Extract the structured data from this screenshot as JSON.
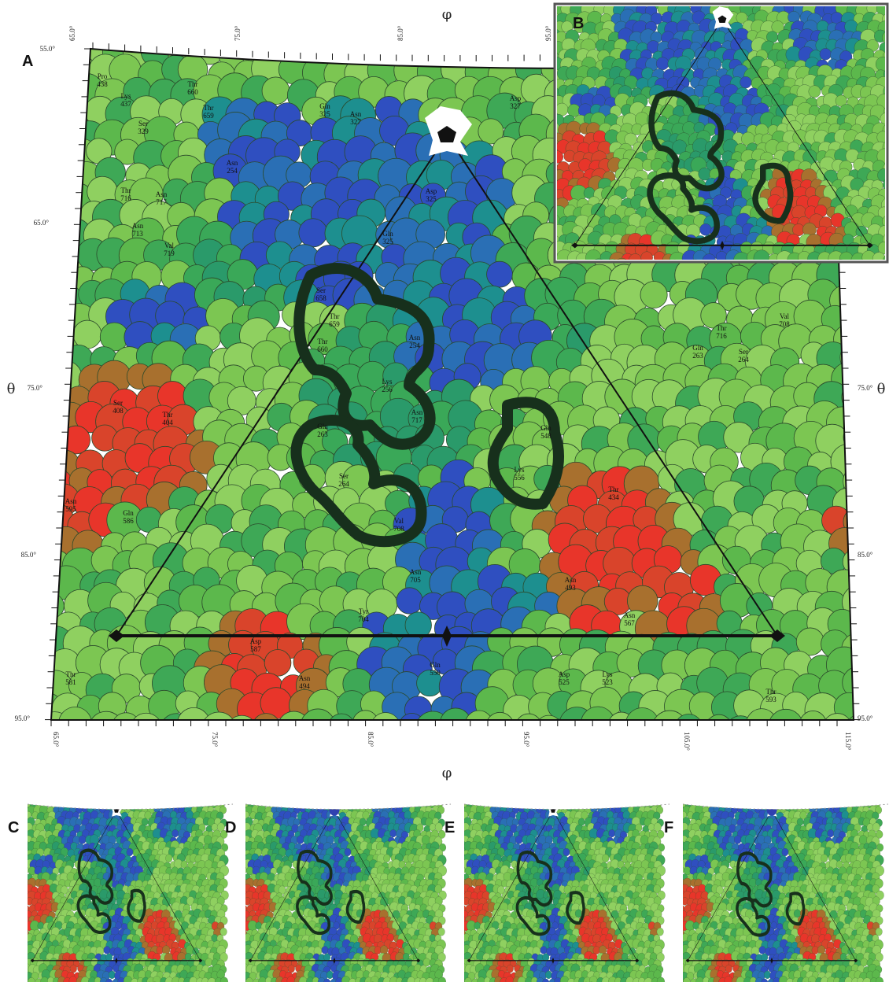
{
  "panel_labels": [
    "A",
    "B",
    "C",
    "D",
    "E",
    "F"
  ],
  "axis_labels": {
    "phi_top": "φ",
    "phi_bottom": "φ",
    "theta_left": "θ",
    "theta_right": "θ"
  },
  "ticks": {
    "top": [
      "65.0°",
      "75.0°",
      "85.0°",
      "95.0°"
    ],
    "bottom": [
      "65.0°",
      "75.0°",
      "85.0°",
      "95.0°",
      "105.0°",
      "115.0°"
    ],
    "left": [
      "55.0°",
      "65.0°",
      "75.0°",
      "85.0°",
      "95.0°"
    ],
    "right": [
      "75.0°",
      "85.0°",
      "95.0°"
    ]
  },
  "residues": [
    {
      "name": "Pro",
      "number": "438"
    },
    {
      "name": "Lys",
      "number": "437"
    },
    {
      "name": "Thr",
      "number": "660"
    },
    {
      "name": "Thr",
      "number": "659"
    },
    {
      "name": "Gln",
      "number": "325"
    },
    {
      "name": "Asn",
      "number": "327"
    },
    {
      "name": "Asp",
      "number": "327"
    },
    {
      "name": "Ser",
      "number": "329"
    },
    {
      "name": "Asn",
      "number": "254"
    },
    {
      "name": "Thr",
      "number": "716"
    },
    {
      "name": "Asn",
      "number": "717"
    },
    {
      "name": "Asn",
      "number": "713"
    },
    {
      "name": "Val",
      "number": "719"
    },
    {
      "name": "Asp",
      "number": "325"
    },
    {
      "name": "Gln",
      "number": "325"
    },
    {
      "name": "Ser",
      "number": "658"
    },
    {
      "name": "Thr",
      "number": "659"
    },
    {
      "name": "Thr",
      "number": "660"
    },
    {
      "name": "Asn",
      "number": "254"
    },
    {
      "name": "Lys",
      "number": "256"
    },
    {
      "name": "Asn",
      "number": "717"
    },
    {
      "name": "Gln",
      "number": "263"
    },
    {
      "name": "Ser",
      "number": "264"
    },
    {
      "name": "Val",
      "number": "708"
    },
    {
      "name": "Gln",
      "number": "548"
    },
    {
      "name": "Lys",
      "number": "556"
    },
    {
      "name": "Thr",
      "number": "716"
    },
    {
      "name": "Val",
      "number": "708"
    },
    {
      "name": "Gln",
      "number": "263"
    },
    {
      "name": "Ser",
      "number": "264"
    },
    {
      "name": "Thr",
      "number": "434"
    },
    {
      "name": "Ser",
      "number": "408"
    },
    {
      "name": "Thr",
      "number": "404"
    },
    {
      "name": "Asn",
      "number": "595"
    },
    {
      "name": "Gln",
      "number": "586"
    },
    {
      "name": "Asn",
      "number": "493"
    },
    {
      "name": "Asn",
      "number": "567"
    },
    {
      "name": "Asp",
      "number": "587"
    },
    {
      "name": "Gln",
      "number": "550"
    },
    {
      "name": "Thr",
      "number": "581"
    },
    {
      "name": "Asn",
      "number": "494"
    },
    {
      "name": "Asn",
      "number": "705"
    },
    {
      "name": "Tyr",
      "number": "704"
    },
    {
      "name": "Asp",
      "number": "525"
    },
    {
      "name": "Thr",
      "number": "593"
    },
    {
      "name": "Lys",
      "number": "523"
    }
  ]
}
